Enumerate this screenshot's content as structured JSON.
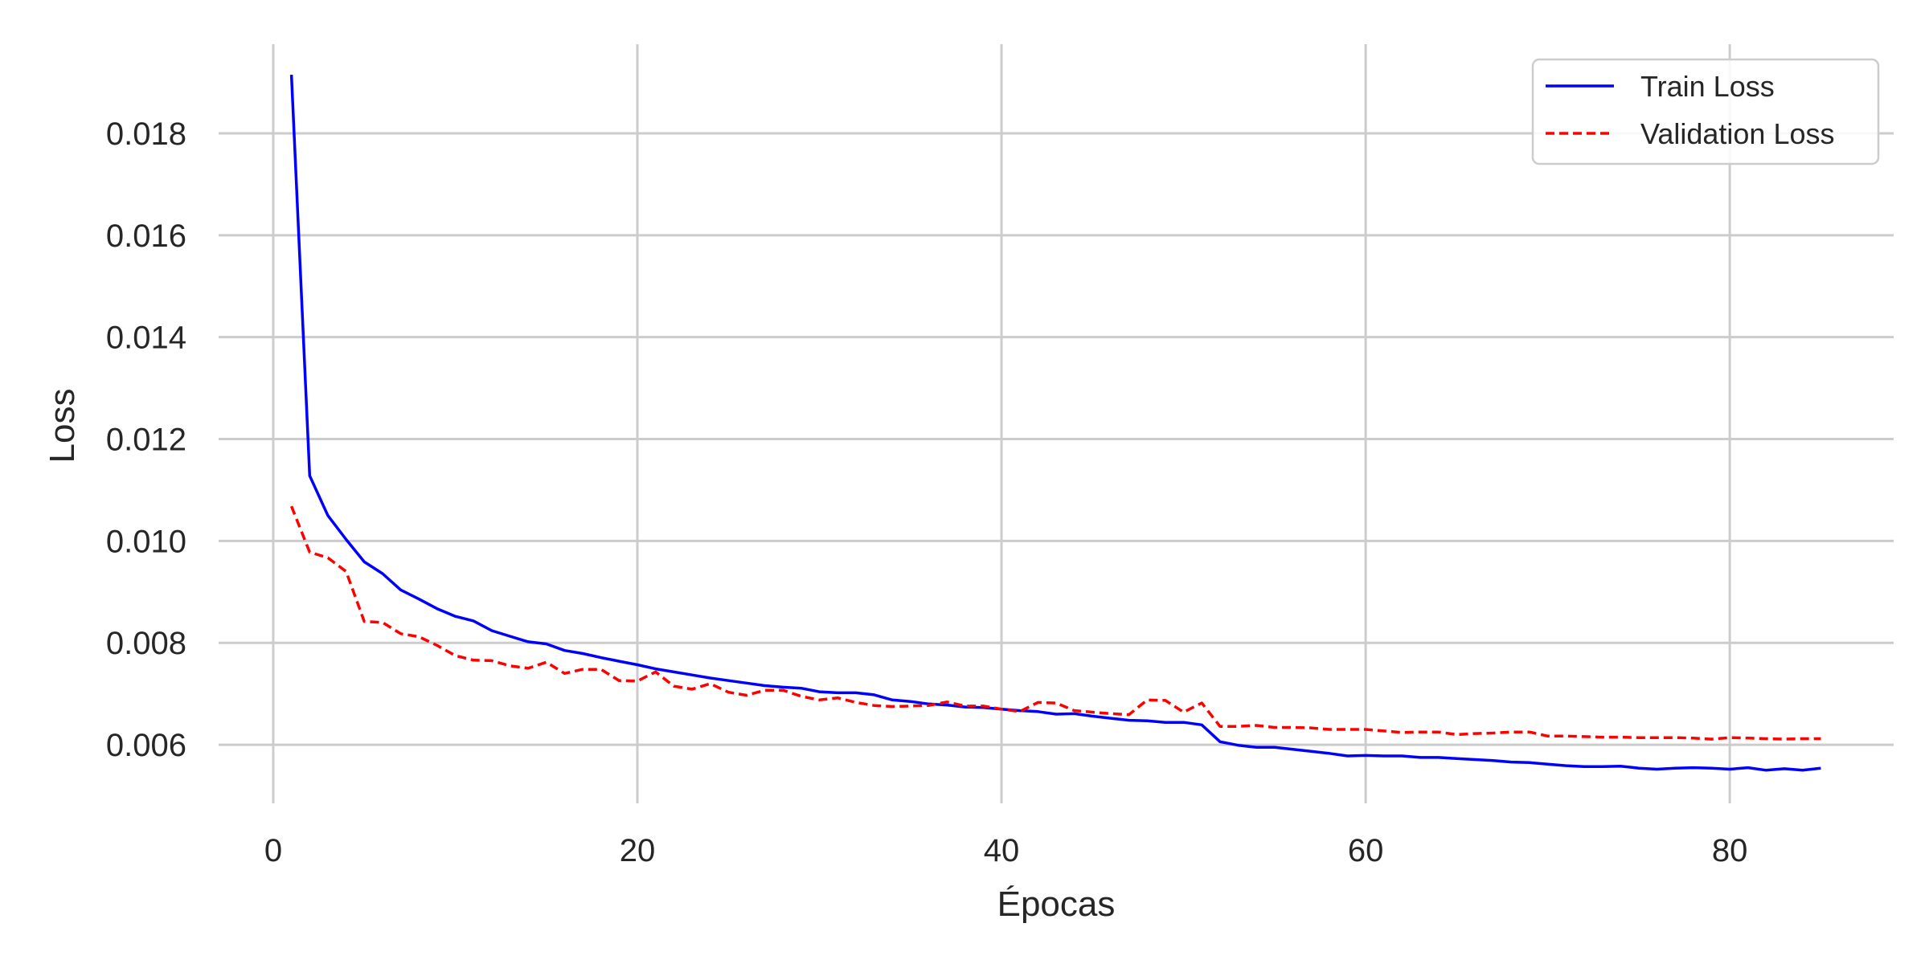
{
  "chart_data": {
    "type": "line",
    "title": "",
    "xlabel": "Épocas",
    "ylabel": "Loss",
    "xlim": [
      -3,
      89
    ],
    "ylim": [
      0.00485,
      0.01975
    ],
    "xticks": [
      0,
      20,
      40,
      60,
      80
    ],
    "yticks": [
      0.006,
      0.008,
      0.01,
      0.012,
      0.014,
      0.016,
      0.018
    ],
    "ytick_labels": [
      "0.006",
      "0.008",
      "0.010",
      "0.012",
      "0.014",
      "0.016",
      "0.018"
    ],
    "grid": true,
    "legend_position": "top-right",
    "x": [
      1,
      2,
      3,
      4,
      5,
      6,
      7,
      8,
      9,
      10,
      11,
      12,
      13,
      14,
      15,
      16,
      17,
      18,
      19,
      20,
      21,
      22,
      23,
      24,
      25,
      26,
      27,
      28,
      29,
      30,
      31,
      32,
      33,
      34,
      35,
      36,
      37,
      38,
      39,
      40,
      41,
      42,
      43,
      44,
      45,
      46,
      47,
      48,
      49,
      50,
      51,
      52,
      53,
      54,
      55,
      56,
      57,
      58,
      59,
      60,
      61,
      62,
      63,
      64,
      65,
      66,
      67,
      68,
      69,
      70,
      71,
      72,
      73,
      74,
      75,
      76,
      77,
      78,
      79,
      80,
      81,
      82,
      83,
      84,
      85
    ],
    "series": [
      {
        "name": "Train Loss",
        "color": "#0000ff",
        "style": "solid",
        "values": [
          0.01915,
          0.01128,
          0.0105,
          0.01003,
          0.00959,
          0.00936,
          0.00904,
          0.00886,
          0.00867,
          0.00852,
          0.00843,
          0.00824,
          0.00813,
          0.00802,
          0.00798,
          0.00785,
          0.00779,
          0.00771,
          0.00764,
          0.00757,
          0.00749,
          0.00743,
          0.00737,
          0.00731,
          0.00726,
          0.00721,
          0.00716,
          0.00713,
          0.00711,
          0.00704,
          0.00702,
          0.00702,
          0.00698,
          0.00688,
          0.00685,
          0.0068,
          0.00678,
          0.00674,
          0.00673,
          0.0067,
          0.00667,
          0.00665,
          0.0066,
          0.00661,
          0.00656,
          0.00652,
          0.00648,
          0.00647,
          0.00644,
          0.00644,
          0.00639,
          0.00606,
          0.00599,
          0.00595,
          0.00595,
          0.00591,
          0.00587,
          0.00583,
          0.00578,
          0.00579,
          0.00578,
          0.00578,
          0.00575,
          0.00575,
          0.00573,
          0.00571,
          0.00569,
          0.00566,
          0.00565,
          0.00562,
          0.00559,
          0.00557,
          0.00557,
          0.00558,
          0.00554,
          0.00552,
          0.00554,
          0.00555,
          0.00554,
          0.00552,
          0.00555,
          0.0055,
          0.00553,
          0.0055,
          0.00554
        ]
      },
      {
        "name": "Validation Loss",
        "color": "#ff0000",
        "style": "dashed",
        "values": [
          0.01068,
          0.00978,
          0.00967,
          0.0094,
          0.00842,
          0.0084,
          0.00818,
          0.00812,
          0.00795,
          0.00775,
          0.00766,
          0.00765,
          0.00755,
          0.0075,
          0.00762,
          0.0074,
          0.00748,
          0.00748,
          0.00726,
          0.00725,
          0.00743,
          0.00715,
          0.00709,
          0.0072,
          0.00703,
          0.00697,
          0.00707,
          0.00707,
          0.00695,
          0.00688,
          0.00692,
          0.00683,
          0.00677,
          0.00675,
          0.00676,
          0.00677,
          0.00684,
          0.00676,
          0.00676,
          0.0067,
          0.00665,
          0.00683,
          0.00682,
          0.00667,
          0.00664,
          0.00661,
          0.00659,
          0.00688,
          0.00687,
          0.00664,
          0.00682,
          0.00636,
          0.00636,
          0.00638,
          0.00634,
          0.00634,
          0.00633,
          0.0063,
          0.0063,
          0.0063,
          0.00627,
          0.00624,
          0.00625,
          0.00625,
          0.0062,
          0.00622,
          0.00623,
          0.00625,
          0.00625,
          0.00617,
          0.00617,
          0.00616,
          0.00615,
          0.00615,
          0.00614,
          0.00614,
          0.00614,
          0.00613,
          0.00611,
          0.00614,
          0.00613,
          0.00612,
          0.00611,
          0.00612,
          0.00612
        ]
      }
    ]
  }
}
